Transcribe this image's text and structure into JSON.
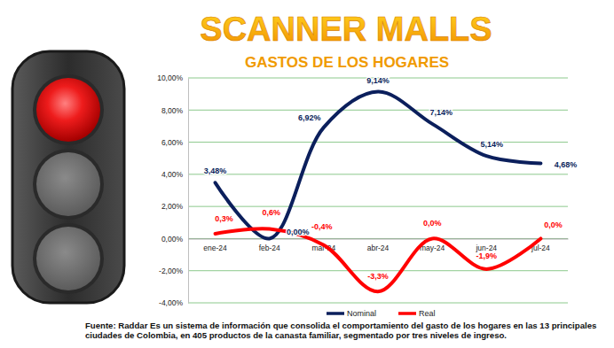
{
  "chart_data": {
    "type": "line",
    "title": "SCANNER MALLS",
    "subtitle": "GASTOS DE LOS HOGARES",
    "source": "Fuente: Raddar Es un sistema de información que consolida el comportamiento del gasto de los hogares en las 13 principales ciudades de Colombia, en 405 productos de la canasta familiar, segmentado por tres niveles de ingreso.",
    "categories": [
      "ene-24",
      "feb-24",
      "mar-24",
      "abr-24",
      "may-24",
      "jun-24",
      "jul-24"
    ],
    "series": [
      {
        "name": "Nominal",
        "color": "#0b1f5c",
        "values": [
          3.48,
          0.0,
          6.92,
          9.14,
          7.14,
          5.14,
          4.68
        ],
        "value_labels": [
          "3,48%",
          "0,00%",
          "6,92%",
          "9,14%",
          "7,14%",
          "5,14%",
          "4,68%"
        ]
      },
      {
        "name": "Real",
        "color": "#ff0000",
        "values": [
          0.3,
          0.6,
          -0.4,
          -3.3,
          0.0,
          -1.9,
          0.0
        ],
        "value_labels": [
          "0,3%",
          "0,6%",
          "-0,4%",
          "-3,3%",
          "0,0%",
          "-1,9%",
          "0,0%"
        ]
      }
    ],
    "ylim": [
      -4,
      10
    ],
    "yticks": [
      {
        "value": -4,
        "label": "-4,00%"
      },
      {
        "value": -2,
        "label": "-2,00%"
      },
      {
        "value": 0,
        "label": "0,00%"
      },
      {
        "value": 2,
        "label": "2,00%"
      },
      {
        "value": 4,
        "label": "4,00%"
      },
      {
        "value": 6,
        "label": "6,00%"
      },
      {
        "value": 8,
        "label": "8,00%"
      },
      {
        "value": 10,
        "label": "10,00%"
      }
    ],
    "grid": true,
    "legend": "bottom",
    "data_labels": true
  }
}
